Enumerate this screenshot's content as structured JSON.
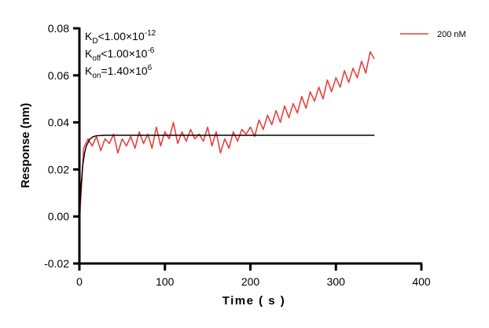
{
  "chart_data": {
    "type": "line",
    "title": "",
    "xlabel": "Time ( s )",
    "ylabel": "Response (nm)",
    "xlim": [
      0,
      400
    ],
    "ylim": [
      -0.02,
      0.08
    ],
    "xticks": [
      0,
      100,
      200,
      300,
      400
    ],
    "xtick_labels": [
      "0",
      "100",
      "200",
      "300",
      "400"
    ],
    "yticks": [
      -0.02,
      0.0,
      0.02,
      0.04,
      0.06,
      0.08
    ],
    "ytick_labels": [
      "-0.02",
      "0.00",
      "0.02",
      "0.04",
      "0.06",
      "0.08"
    ],
    "grid": false,
    "legend_position": "top-right",
    "annotations": [
      {
        "main": "K",
        "sub": "D",
        "rest": "<1.00×10",
        "sup": "-12"
      },
      {
        "main": "K",
        "sub": "off",
        "rest": "<1.00×10",
        "sup": "-6"
      },
      {
        "main": "K",
        "sub": "on",
        "rest": "=1.40×10",
        "sup": "6"
      }
    ],
    "series": [
      {
        "name": "200 nM",
        "color": "#e8413c",
        "x": [
          0,
          5,
          10,
          15,
          20,
          25,
          30,
          35,
          40,
          45,
          50,
          55,
          60,
          65,
          70,
          75,
          80,
          85,
          90,
          95,
          100,
          105,
          110,
          115,
          120,
          125,
          130,
          135,
          140,
          145,
          150,
          155,
          160,
          165,
          170,
          175,
          180,
          185,
          190,
          195,
          200,
          205,
          210,
          215,
          220,
          225,
          230,
          235,
          240,
          245,
          250,
          255,
          260,
          265,
          270,
          275,
          280,
          285,
          290,
          295,
          300,
          305,
          310,
          315,
          320,
          325,
          330,
          335,
          340,
          345
        ],
        "y": [
          -0.003,
          0.029,
          0.033,
          0.03,
          0.034,
          0.028,
          0.033,
          0.031,
          0.035,
          0.027,
          0.033,
          0.03,
          0.034,
          0.029,
          0.036,
          0.031,
          0.035,
          0.029,
          0.038,
          0.03,
          0.036,
          0.033,
          0.04,
          0.031,
          0.036,
          0.032,
          0.037,
          0.033,
          0.035,
          0.032,
          0.038,
          0.03,
          0.036,
          0.027,
          0.033,
          0.029,
          0.036,
          0.032,
          0.037,
          0.035,
          0.038,
          0.034,
          0.041,
          0.037,
          0.043,
          0.039,
          0.045,
          0.04,
          0.047,
          0.042,
          0.048,
          0.044,
          0.051,
          0.046,
          0.053,
          0.049,
          0.055,
          0.05,
          0.058,
          0.053,
          0.059,
          0.055,
          0.062,
          0.057,
          0.063,
          0.059,
          0.066,
          0.061,
          0.07,
          0.067
        ]
      },
      {
        "name": "",
        "color": "#000000",
        "x": [
          0,
          2,
          4,
          6,
          8,
          12,
          16,
          20,
          30,
          345
        ],
        "y": [
          0,
          0.0136,
          0.0218,
          0.0268,
          0.0298,
          0.0328,
          0.0339,
          0.0343,
          0.0345,
          0.0345
        ]
      }
    ]
  }
}
